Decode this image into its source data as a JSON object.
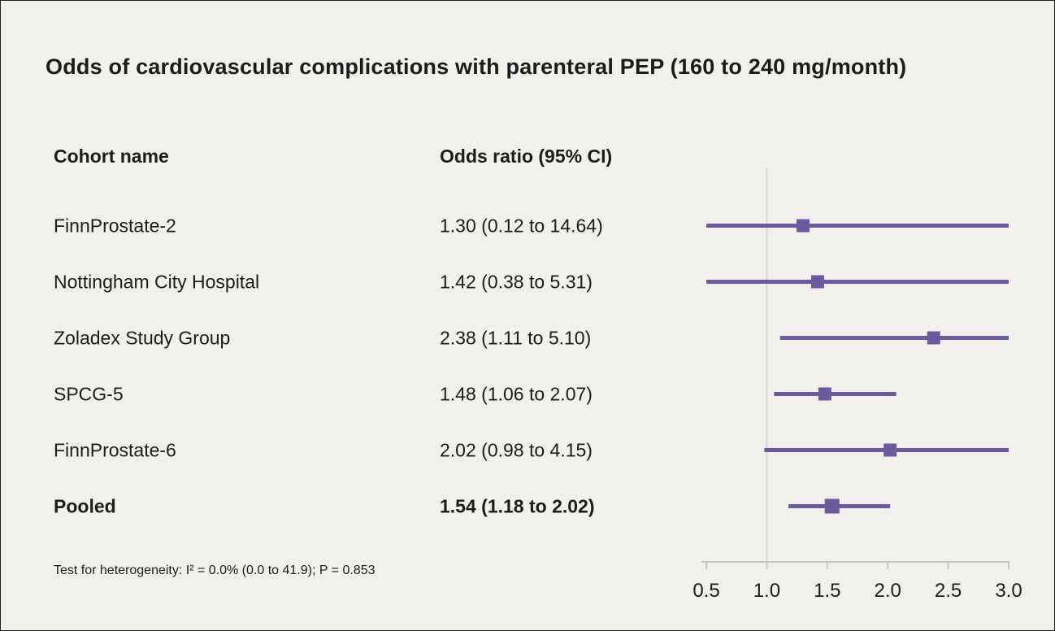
{
  "chart_data": {
    "type": "forest",
    "title": "Odds of cardiovascular complications with parenteral PEP (160 to 240 mg/month)",
    "columns": [
      "Cohort name",
      "Odds ratio (95% CI)"
    ],
    "rows": [
      {
        "name": "FinnProstate-2",
        "label": "1.30 (0.12 to 14.64)",
        "or": 1.3,
        "ci_low": 0.12,
        "ci_high": 14.64,
        "pooled": false
      },
      {
        "name": "Nottingham City Hospital",
        "label": "1.42 (0.38 to 5.31)",
        "or": 1.42,
        "ci_low": 0.38,
        "ci_high": 5.31,
        "pooled": false
      },
      {
        "name": "Zoladex Study Group",
        "label": "2.38 (1.11 to 5.10)",
        "or": 2.38,
        "ci_low": 1.11,
        "ci_high": 5.1,
        "pooled": false
      },
      {
        "name": "SPCG-5",
        "label": "1.48 (1.06 to 2.07)",
        "or": 1.48,
        "ci_low": 1.06,
        "ci_high": 2.07,
        "pooled": false
      },
      {
        "name": "FinnProstate-6",
        "label": "2.02 (0.98 to 4.15)",
        "or": 2.02,
        "ci_low": 0.98,
        "ci_high": 4.15,
        "pooled": false
      },
      {
        "name": "Pooled",
        "label": "1.54 (1.18 to 2.02)",
        "or": 1.54,
        "ci_low": 1.18,
        "ci_high": 2.02,
        "pooled": true
      }
    ],
    "x_axis": {
      "min": 0.5,
      "max": 3.0,
      "ticks": [
        0.5,
        1.0,
        1.5,
        2.0,
        2.5,
        3.0
      ],
      "tick_labels": [
        "0.5",
        "1.0",
        "1.5",
        "2.0",
        "2.5",
        "3.0"
      ],
      "reference_line": 1.0
    },
    "footnote": "Test for heterogeneity: I² = 0.0% (0.0 to 41.9); P = 0.853",
    "colors": {
      "marker": "#6a5a9e",
      "ci_line": "#6a5a9e",
      "reference_line": "#d8d6d1",
      "axis": "#c7c5c0",
      "background": "#f1f0ed",
      "text": "#1c1c1c"
    }
  }
}
